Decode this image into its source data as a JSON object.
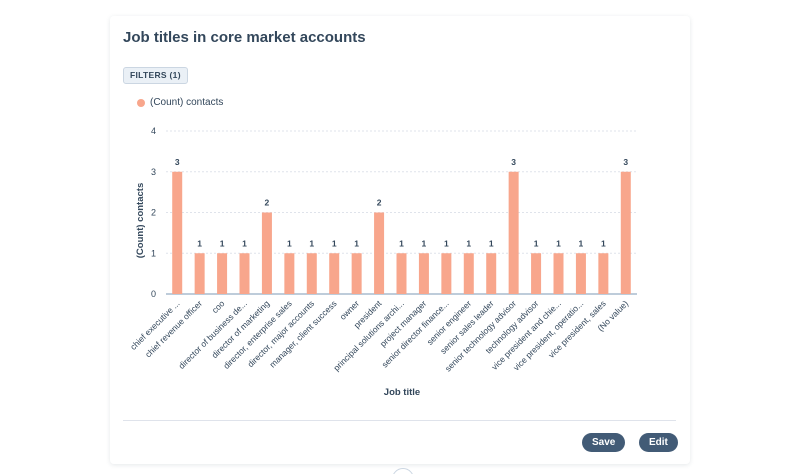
{
  "report": {
    "title": "Job titles in core market accounts",
    "filters_label": "FILTERS (1)",
    "save_label": "Save",
    "edit_label": "Edit"
  },
  "colors": {
    "bar": "#f8a68c",
    "button": "#425b76",
    "text": "#33475b"
  },
  "chart_data": {
    "type": "bar",
    "title": "Job titles in core market accounts",
    "xlabel": "Job title",
    "ylabel": "(Count) contacts",
    "ylim": [
      0,
      4
    ],
    "yticks": [
      0,
      1,
      2,
      3,
      4
    ],
    "grid": true,
    "legend_position": "top-left",
    "categories": [
      "chief executive ...",
      "chief revenue officer",
      "coo",
      "director of business de...",
      "director of marketing",
      "director, enterprise sales",
      "director, major accounts",
      "manager, client success",
      "owner",
      "president",
      "principal solutions archi...",
      "project manager",
      "senior director finance...",
      "senior engineer",
      "senior sales leader",
      "senior technology advisor",
      "technology advisor",
      "vice president and chie...",
      "vice president, operatio...",
      "vice president, sales",
      "(No value)"
    ],
    "series": [
      {
        "name": "(Count) contacts",
        "values": [
          3,
          1,
          1,
          1,
          2,
          1,
          1,
          1,
          1,
          2,
          1,
          1,
          1,
          1,
          1,
          3,
          1,
          1,
          1,
          1,
          3
        ]
      }
    ]
  }
}
